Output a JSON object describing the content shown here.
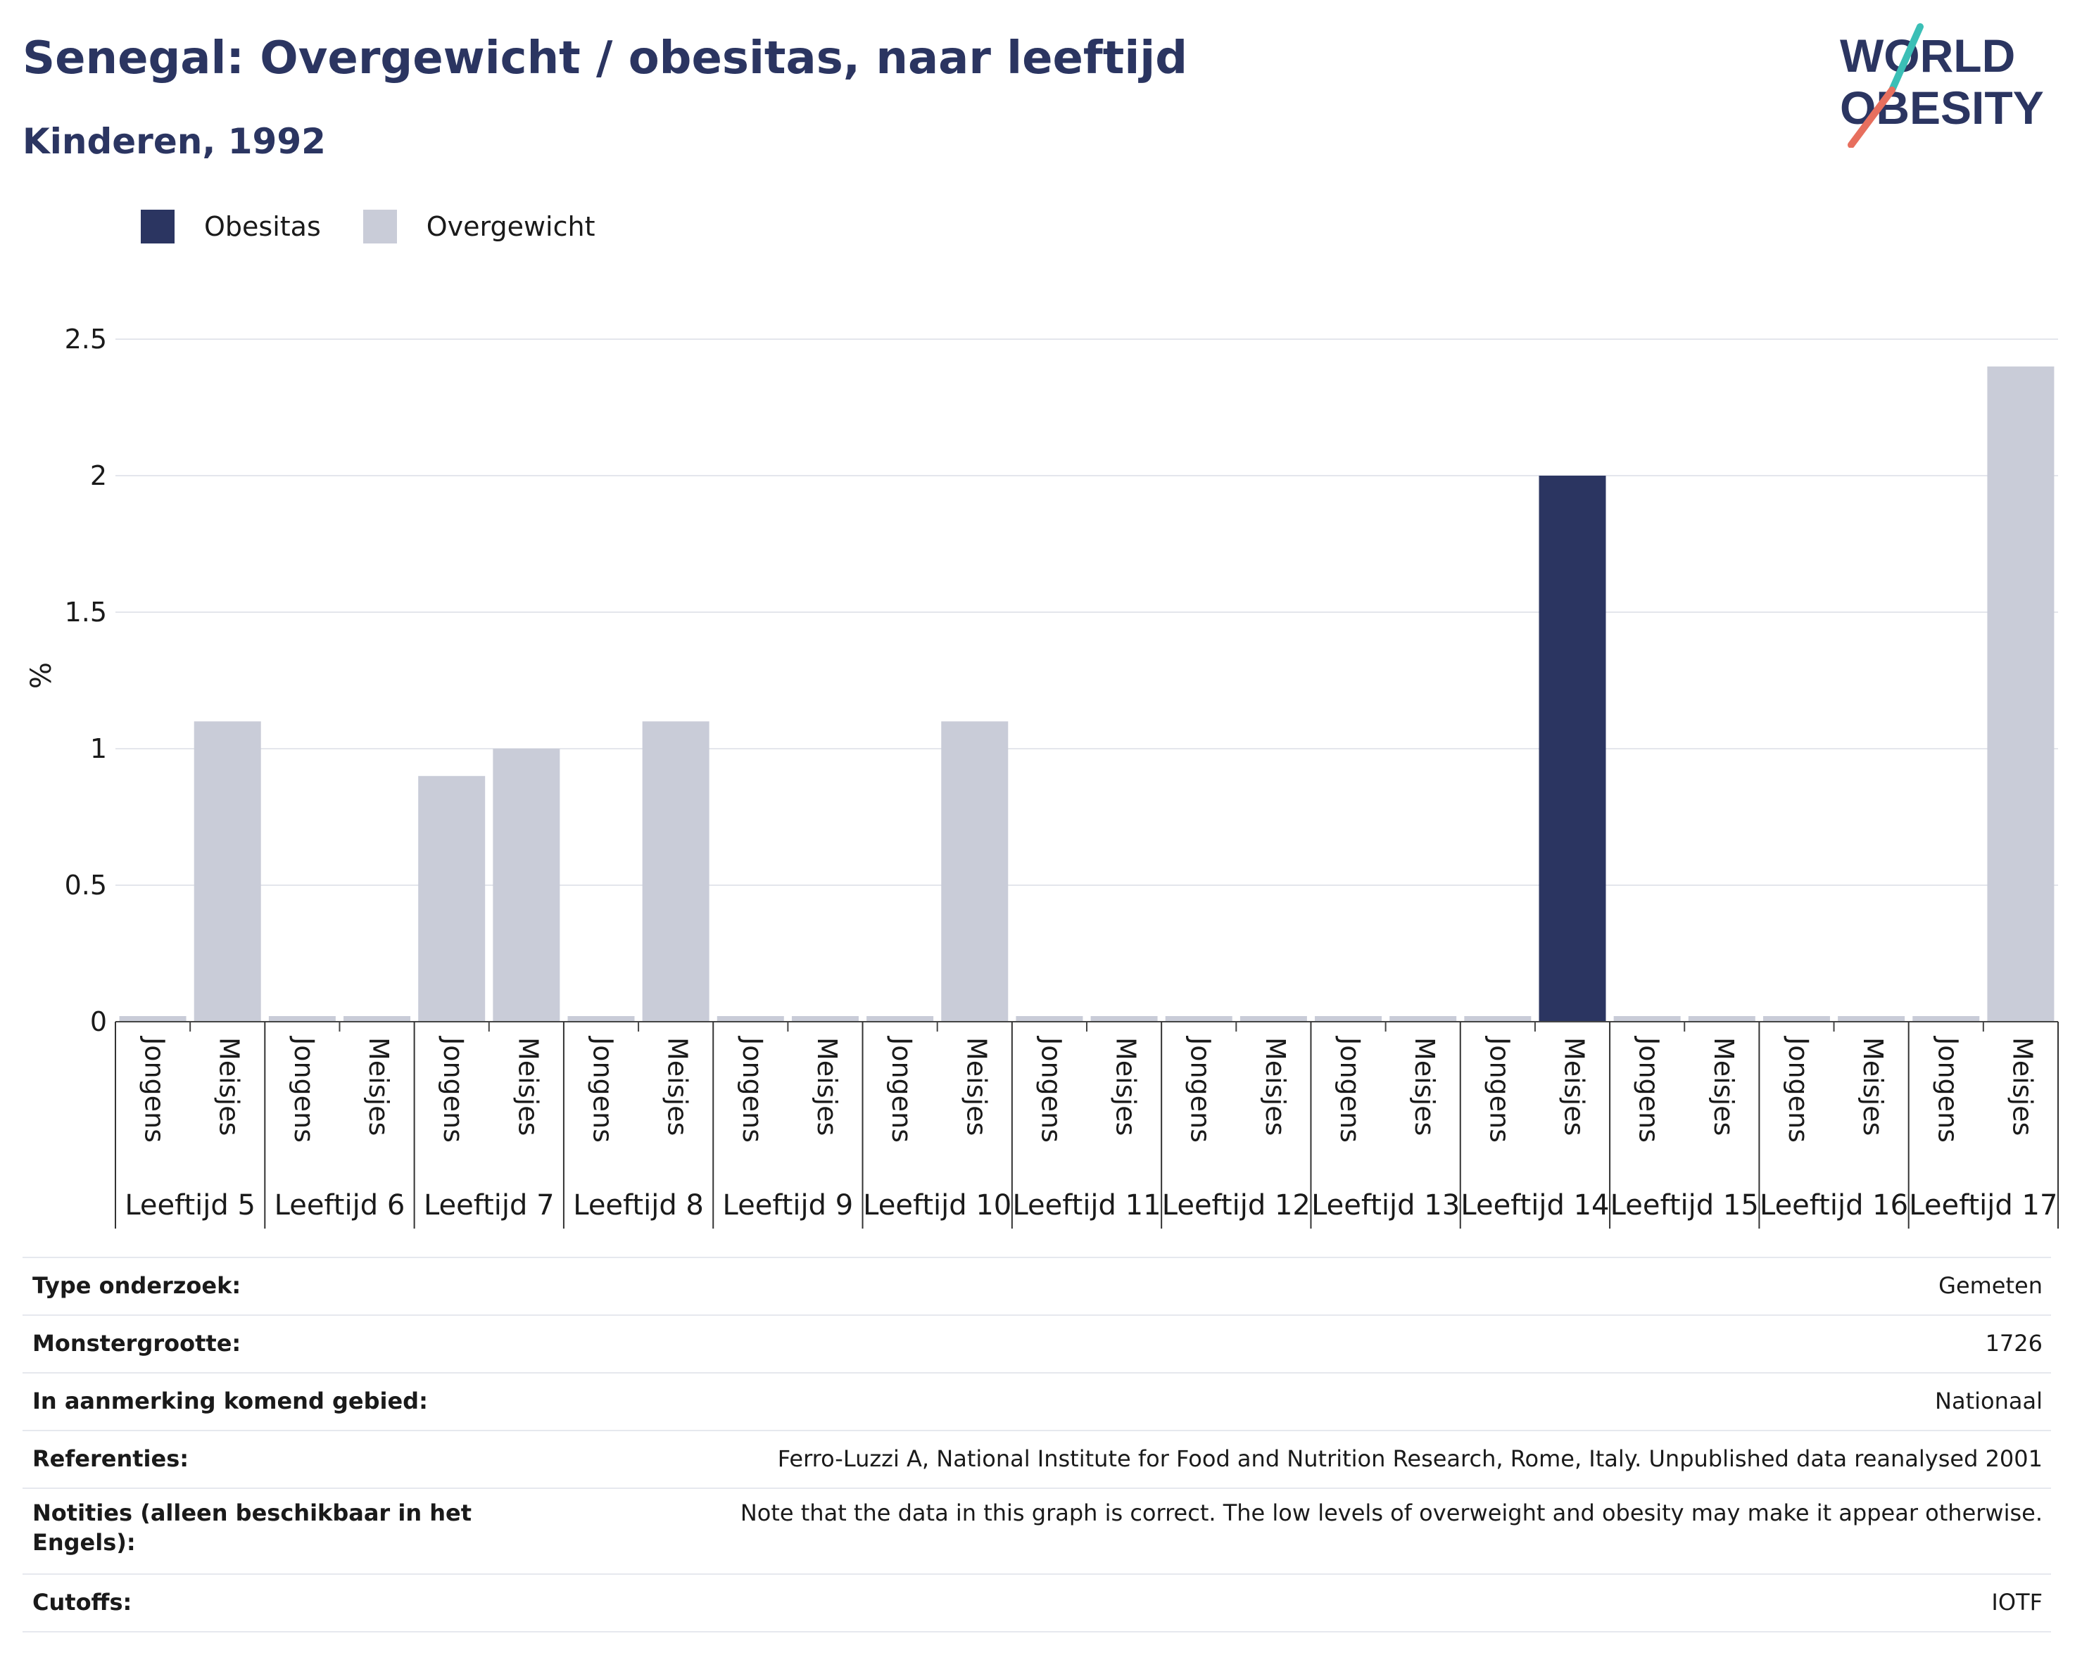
{
  "header": {
    "title": "Senegal: Overgewicht / obesitas, naar leeftijd",
    "subtitle": "Kinderen, 1992",
    "logo_line1": "WORLD",
    "logo_line2": "OBESITY"
  },
  "legend": {
    "items": [
      {
        "label": "Obesitas",
        "color": "#2b3561"
      },
      {
        "label": "Overgewicht",
        "color": "#c9ccd8"
      }
    ]
  },
  "chart_data": {
    "type": "bar",
    "stacked": true,
    "ylabel": "%",
    "ylim": [
      0,
      2.5
    ],
    "yticks": [
      "0",
      "0.5",
      "1",
      "1.5",
      "2",
      "2.5"
    ],
    "grid": true,
    "legend_position": "top-left",
    "groups": [
      "Leeftijd 5",
      "Leeftijd 6",
      "Leeftijd 7",
      "Leeftijd 8",
      "Leeftijd 9",
      "Leeftijd 10",
      "Leeftijd 11",
      "Leeftijd 12",
      "Leeftijd 13",
      "Leeftijd 14",
      "Leeftijd 15",
      "Leeftijd 16",
      "Leeftijd 17"
    ],
    "subcategories": [
      "Jongens",
      "Meisjes"
    ],
    "series": [
      {
        "name": "Obesitas",
        "color": "#2b3561",
        "values": [
          [
            0,
            0
          ],
          [
            0,
            0
          ],
          [
            0,
            0
          ],
          [
            0,
            0
          ],
          [
            0,
            0
          ],
          [
            0,
            0
          ],
          [
            0,
            0
          ],
          [
            0,
            0
          ],
          [
            0,
            0
          ],
          [
            0,
            2.0
          ],
          [
            0,
            0
          ],
          [
            0,
            0
          ],
          [
            0,
            0
          ]
        ]
      },
      {
        "name": "Overgewicht",
        "color": "#c9ccd8",
        "values": [
          [
            0,
            1.1
          ],
          [
            0,
            0
          ],
          [
            0.9,
            1.0
          ],
          [
            0,
            1.1
          ],
          [
            0,
            0
          ],
          [
            0,
            1.1
          ],
          [
            0,
            0
          ],
          [
            0,
            0
          ],
          [
            0,
            0
          ],
          [
            0,
            0
          ],
          [
            0,
            0
          ],
          [
            0,
            0
          ],
          [
            0,
            2.4
          ]
        ]
      }
    ]
  },
  "info": {
    "rows": [
      {
        "key": "Type onderzoek:",
        "value": "Gemeten"
      },
      {
        "key": "Monstergrootte:",
        "value": "1726"
      },
      {
        "key": "In aanmerking komend gebied:",
        "value": "Nationaal"
      },
      {
        "key": "Referenties:",
        "value": "Ferro-Luzzi A, National Institute for Food and Nutrition Research, Rome, Italy. Unpublished data reanalysed 2001"
      },
      {
        "key": "Notities (alleen beschikbaar in het Engels):",
        "value": "Note that the data in this graph is correct. The low levels of overweight and obesity may make it appear otherwise."
      },
      {
        "key": "Cutoffs:",
        "value": "IOTF"
      }
    ]
  }
}
